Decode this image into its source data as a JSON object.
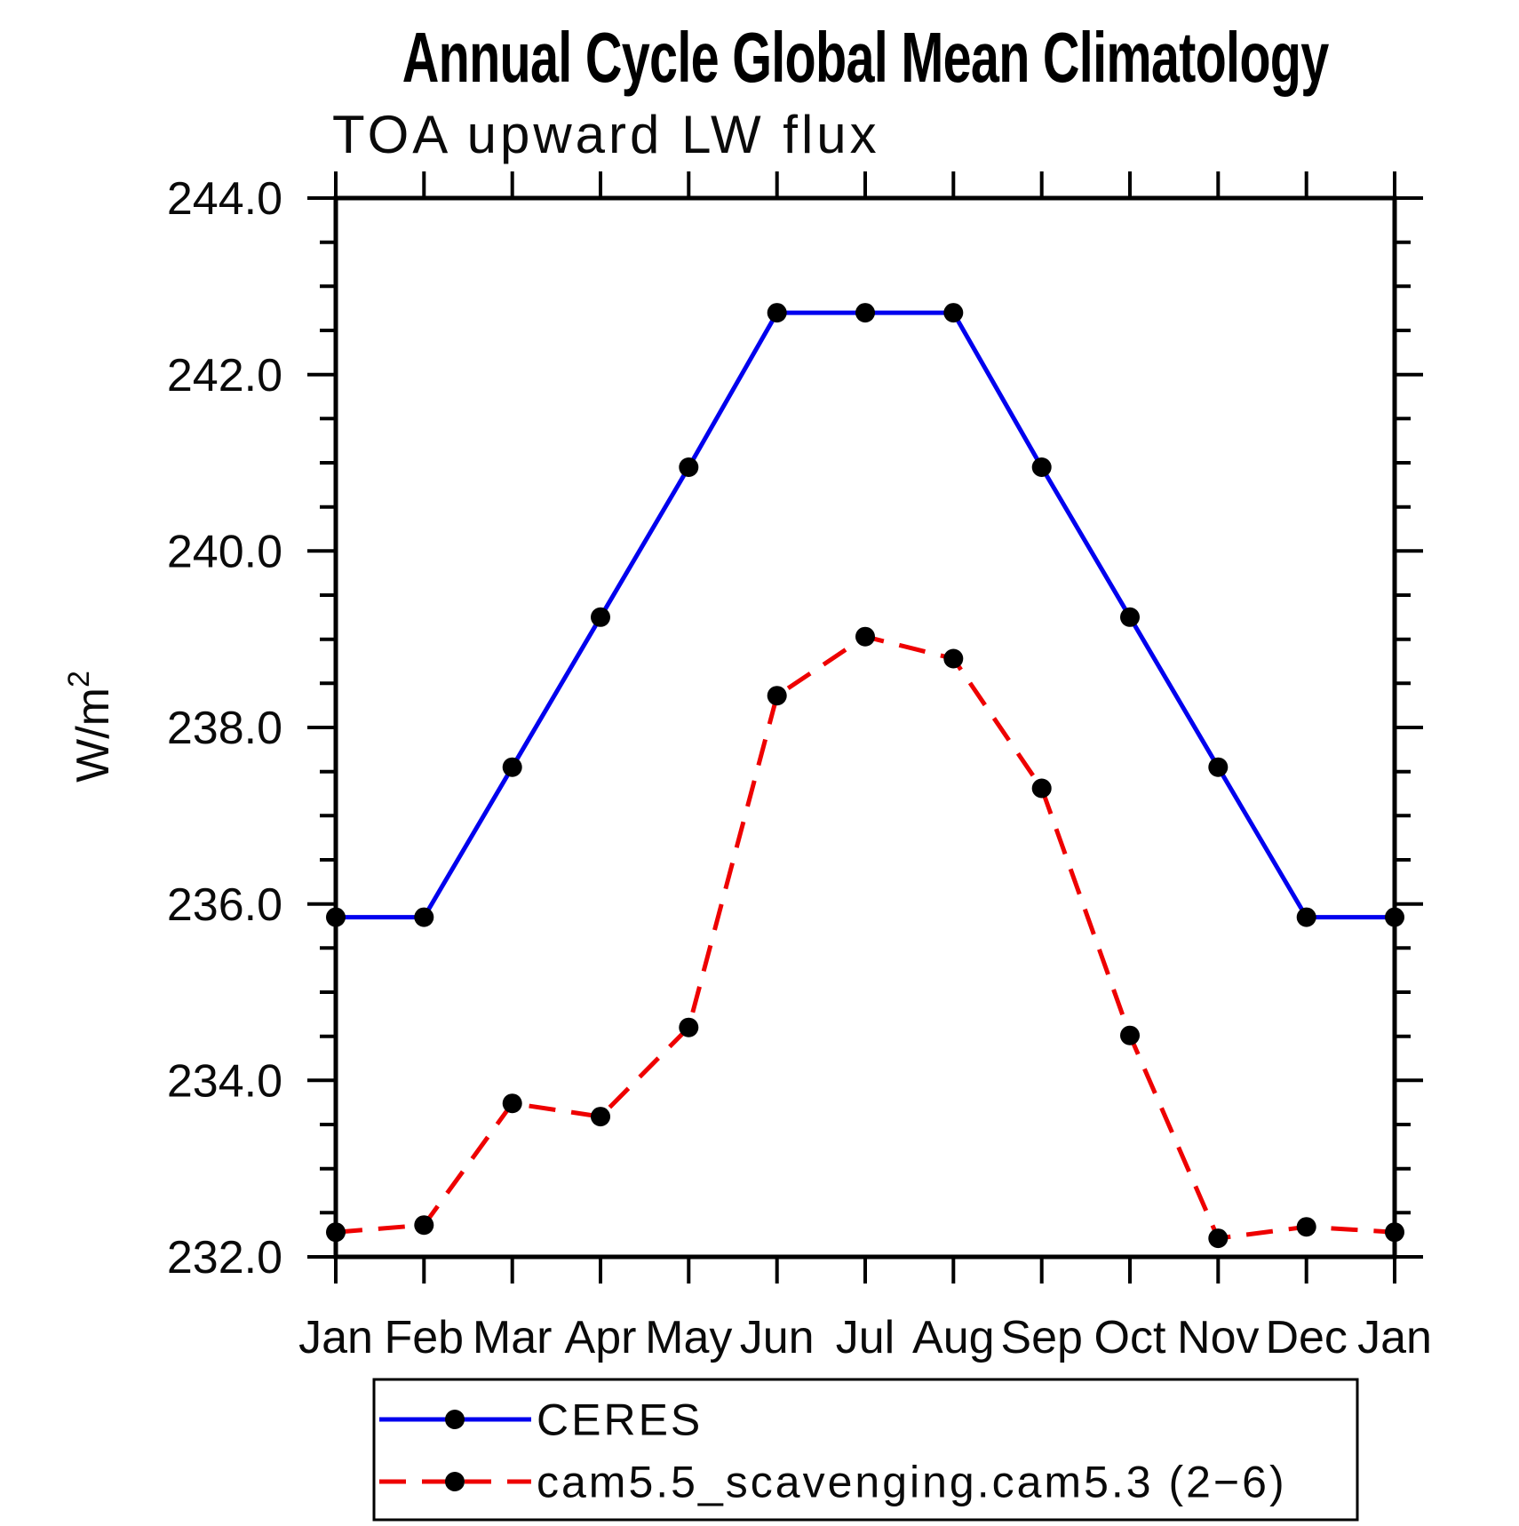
{
  "title": "Annual Cycle Global Mean Climatology",
  "subtitle": "TOA upward LW flux",
  "y_axis": {
    "label_base": "W/m",
    "label_exponent": "2"
  },
  "chart_data": {
    "type": "line",
    "title": "Annual Cycle Global Mean Climatology",
    "subtitle": "TOA upward LW flux",
    "ylabel": "W/m²",
    "xlabel": "",
    "grid": false,
    "legend_position": "bottom",
    "categories": [
      "Jan",
      "Feb",
      "Mar",
      "Apr",
      "May",
      "Jun",
      "Jul",
      "Aug",
      "Sep",
      "Oct",
      "Nov",
      "Dec",
      "Jan"
    ],
    "ylim": [
      232.0,
      244.0
    ],
    "ytick_major_step": 2.0,
    "ytick_minor_step": 0.5,
    "ytick_labels": [
      "232.0",
      "234.0",
      "236.0",
      "238.0",
      "240.0",
      "242.0",
      "244.0"
    ],
    "series": [
      {
        "name": "CERES",
        "color": "#0000ee",
        "line_style": "solid",
        "marker": "filled-circle",
        "marker_color": "#000000",
        "values": [
          235.85,
          235.85,
          237.55,
          239.25,
          240.95,
          242.7,
          242.7,
          242.7,
          240.95,
          239.25,
          237.55,
          235.85,
          235.85
        ]
      },
      {
        "name": "cam5.5_scavenging.cam5.3 (2−6)",
        "color": "#ee0000",
        "line_style": "dashed",
        "marker": "filled-circle",
        "marker_color": "#000000",
        "values": [
          232.28,
          232.36,
          233.74,
          233.59,
          234.6,
          238.36,
          239.03,
          238.78,
          237.31,
          234.51,
          232.21,
          232.34,
          232.28
        ]
      }
    ]
  }
}
